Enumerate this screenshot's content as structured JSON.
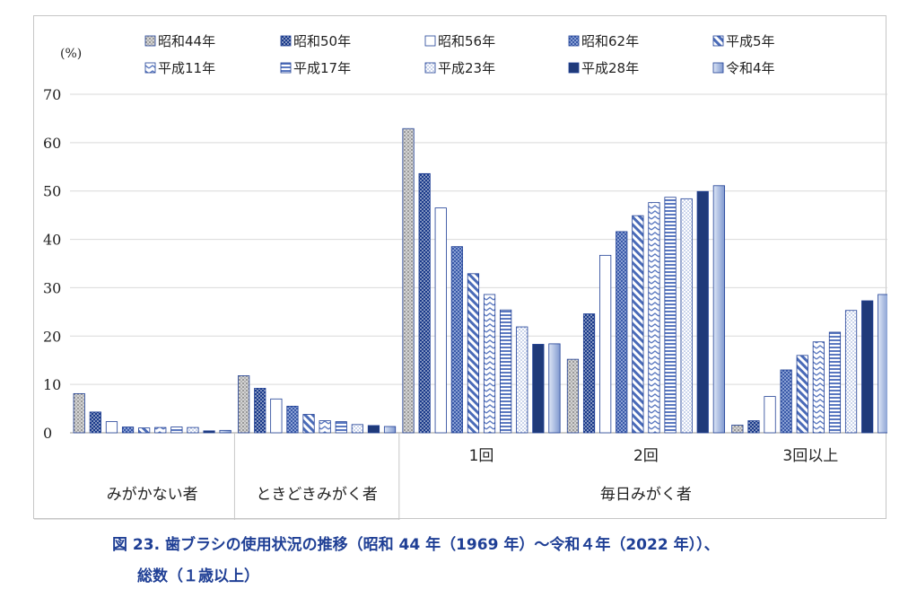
{
  "chart_data": {
    "type": "bar",
    "unit_label": "(%)",
    "ylim": [
      0,
      70
    ],
    "yticks": [
      0,
      10,
      20,
      30,
      40,
      50,
      60,
      70
    ],
    "grid": true,
    "legend_position": "top",
    "series": [
      {
        "name": "昭和44年",
        "color": "#bcbcbc",
        "pattern": "dots-gray",
        "values": [
          8.1,
          11.8,
          62.9,
          15.2,
          1.6
        ]
      },
      {
        "name": "昭和50年",
        "color": "#1f3f95",
        "pattern": "dots-navy",
        "values": [
          4.3,
          9.2,
          53.6,
          24.6,
          2.5
        ]
      },
      {
        "name": "昭和56年",
        "color": "#ffffff",
        "pattern": "white",
        "values": [
          2.3,
          7.0,
          46.5,
          36.7,
          7.5
        ]
      },
      {
        "name": "昭和62年",
        "color": "#4a6bb8",
        "pattern": "checker",
        "values": [
          1.2,
          5.5,
          38.5,
          41.6,
          13.0
        ]
      },
      {
        "name": "平成5年",
        "color": "#4a6bb8",
        "pattern": "diagonal",
        "values": [
          1.0,
          3.8,
          32.9,
          44.9,
          16.0
        ]
      },
      {
        "name": "平成11年",
        "color": "#4a6bb8",
        "pattern": "zigzag",
        "values": [
          1.1,
          2.5,
          28.6,
          47.6,
          18.8
        ]
      },
      {
        "name": "平成17年",
        "color": "#4a6bb8",
        "pattern": "horizontal",
        "values": [
          1.2,
          2.3,
          25.4,
          48.7,
          20.8
        ]
      },
      {
        "name": "平成23年",
        "color": "#4a6bb8",
        "pattern": "dots-light",
        "values": [
          1.1,
          1.7,
          21.9,
          48.4,
          25.3
        ]
      },
      {
        "name": "平成28年",
        "color": "#1f3a7a",
        "pattern": "solid",
        "values": [
          0.4,
          1.5,
          18.3,
          49.9,
          27.3
        ]
      },
      {
        "name": "令和4年",
        "color": "#8fa6d6",
        "pattern": "gradient",
        "values": [
          0.5,
          1.3,
          18.4,
          51.1,
          28.6
        ]
      }
    ],
    "categories": [
      "みがかない者",
      "ときどきみがく者",
      "1回",
      "2回",
      "3回以上"
    ],
    "group_label": "毎日みがく者"
  },
  "caption": {
    "line1": "図 23. 歯ブラシの使用状況の推移（昭和 44 年（1969 年）～令和４年（2022 年））、",
    "line2": "総数（１歳以上）"
  }
}
